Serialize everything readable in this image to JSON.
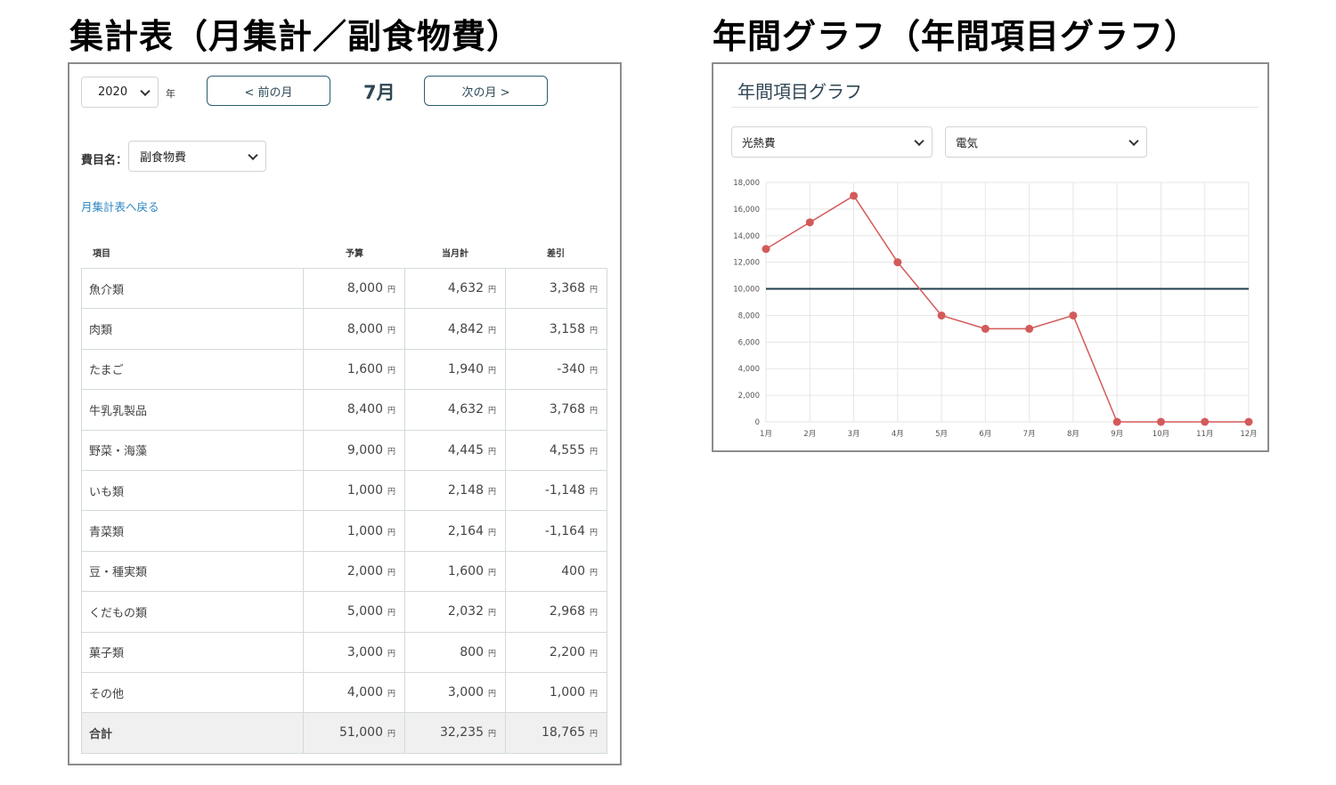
{
  "headings": {
    "left": "集計表（月集計／副食物費）",
    "right": "年間グラフ（年間項目グラフ）"
  },
  "monthly": {
    "year_value": "2020",
    "year_suffix": "年",
    "prev_label": "< 前の月",
    "month_label": "7月",
    "next_label": "次の月 >",
    "category_label": "費目名：",
    "category_value": "副食物費",
    "back_link": "月集計表へ戻る",
    "columns": [
      "項目",
      "予算",
      "当月計",
      "差引"
    ],
    "yen": "円",
    "rows": [
      {
        "name": "魚介類",
        "budget": "8,000",
        "actual": "4,632",
        "diff": "3,368"
      },
      {
        "name": "肉類",
        "budget": "8,000",
        "actual": "4,842",
        "diff": "3,158"
      },
      {
        "name": "たまご",
        "budget": "1,600",
        "actual": "1,940",
        "diff": "-340"
      },
      {
        "name": "牛乳乳製品",
        "budget": "8,400",
        "actual": "4,632",
        "diff": "3,768"
      },
      {
        "name": "野菜・海藻",
        "budget": "9,000",
        "actual": "4,445",
        "diff": "4,555"
      },
      {
        "name": "いも類",
        "budget": "1,000",
        "actual": "2,148",
        "diff": "-1,148"
      },
      {
        "name": "青菜類",
        "budget": "1,000",
        "actual": "2,164",
        "diff": "-1,164"
      },
      {
        "name": "豆・種実類",
        "budget": "2,000",
        "actual": "1,600",
        "diff": "400"
      },
      {
        "name": "くだもの類",
        "budget": "5,000",
        "actual": "2,032",
        "diff": "2,968"
      },
      {
        "name": "菓子類",
        "budget": "3,000",
        "actual": "800",
        "diff": "2,200"
      },
      {
        "name": "その他",
        "budget": "4,000",
        "actual": "3,000",
        "diff": "1,000"
      }
    ],
    "total": {
      "name": "合計",
      "budget": "51,000",
      "actual": "32,235",
      "diff": "18,765"
    }
  },
  "annual": {
    "title": "年間項目グラフ",
    "select_a": "光熱費",
    "select_b": "電気"
  },
  "colors": {
    "series_line": "#d35a5a",
    "budget_line": "#1e3d4c",
    "grid": "#e6e6e6"
  },
  "chart_data": {
    "type": "line",
    "categories": [
      "1月",
      "2月",
      "3月",
      "4月",
      "5月",
      "6月",
      "7月",
      "8月",
      "9月",
      "10月",
      "11月",
      "12月"
    ],
    "series": [
      {
        "values": [
          13000,
          15000,
          17000,
          12000,
          8000,
          7000,
          7000,
          8000,
          0,
          0,
          0,
          0
        ]
      }
    ],
    "reference_line": 10000,
    "yticks": [
      "0",
      "2,000",
      "4,000",
      "6,000",
      "8,000",
      "10,000",
      "12,000",
      "14,000",
      "16,000",
      "18,000"
    ],
    "ylim": [
      0,
      18000
    ],
    "grid": true
  }
}
